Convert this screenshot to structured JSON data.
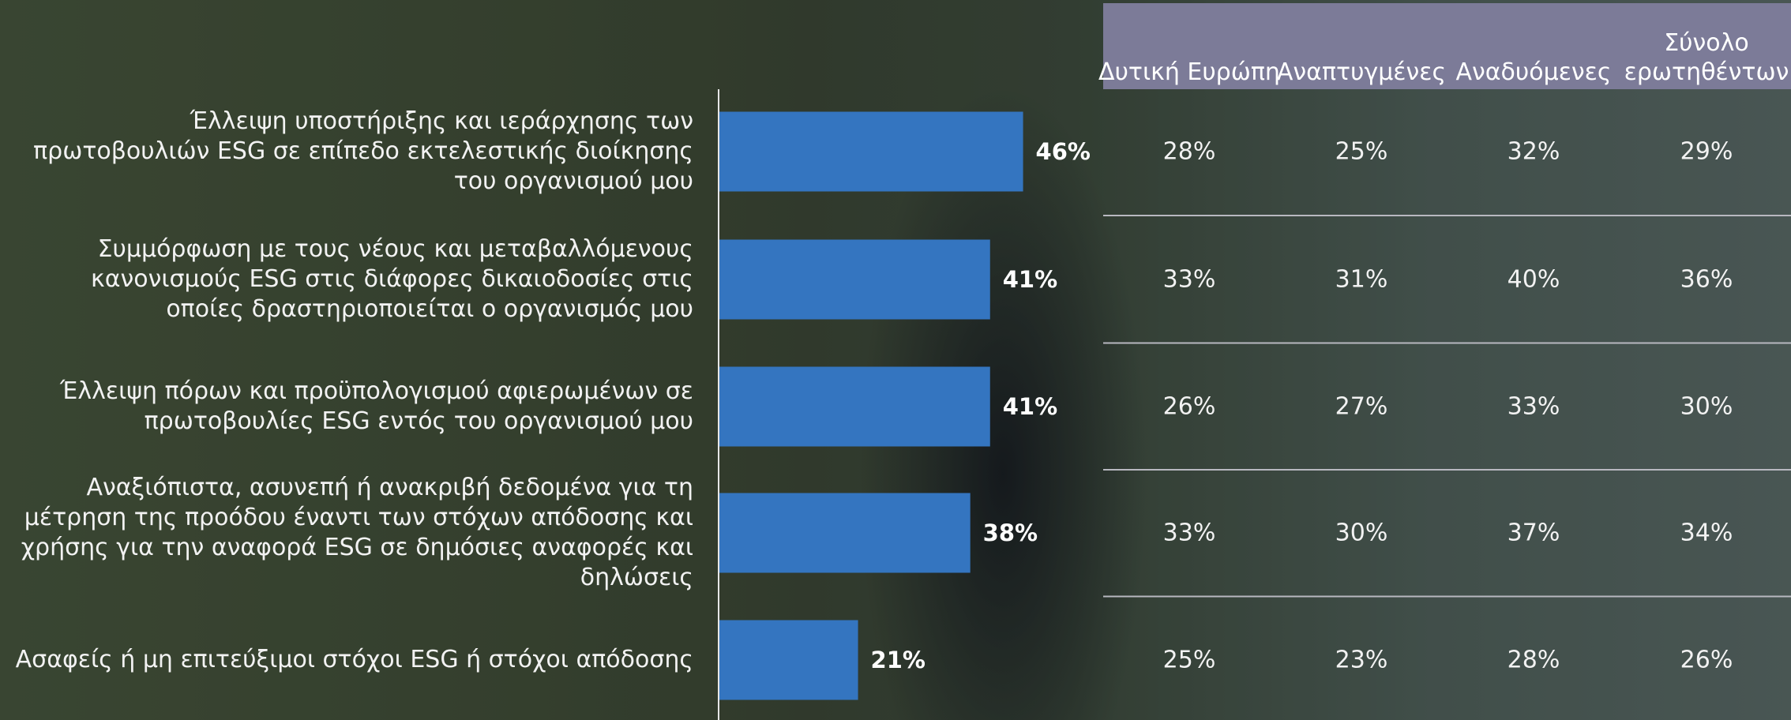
{
  "chart_data": {
    "type": "bar",
    "orientation": "horizontal",
    "categories": [
      "Έλλειψη υποστήριξης και ιεράρχησης των πρωτοβουλιών ESG σε επίπεδο εκτελεστικής διοίκησης του οργανισμού μου",
      "Συμμόρφωση με τους νέους και μεταβαλλόμενους κανονισμούς ESG στις διάφορες δικαιοδοσίες στις οποίες δραστηριοποιείται ο οργανισμός μου",
      "Έλλειψη πόρων και προϋπολογισμού αφιερωμένων σε πρωτοβουλίες ESG εντός του οργανισμού μου",
      "Αναξιόπιστα, ασυνεπή ή ανακριβή δεδομένα για τη μέτρηση της προόδου έναντι των στόχων απόδοσης και χρήσης για την αναφορά ESG σε δημόσιες αναφορές και δηλώσεις",
      "Ασαφείς ή μη επιτεύξιμοι στόχοι ESG ή στόχοι απόδοσης"
    ],
    "values": [
      46,
      41,
      41,
      38,
      21
    ],
    "value_labels": [
      "46%",
      "41%",
      "41%",
      "38%",
      "21%"
    ],
    "color": "#3475c0"
  },
  "table": {
    "header": [
      "Δυτική Ευρώπη",
      "Αναπτυγμένες",
      "Αναδυόμενες",
      "Σύνολο ερωτηθέντων"
    ],
    "rows": [
      [
        "28%",
        "25%",
        "32%",
        "29%"
      ],
      [
        "33%",
        "31%",
        "40%",
        "36%"
      ],
      [
        "26%",
        "27%",
        "33%",
        "30%"
      ],
      [
        "33%",
        "30%",
        "37%",
        "34%"
      ],
      [
        "25%",
        "23%",
        "28%",
        "26%"
      ]
    ]
  }
}
